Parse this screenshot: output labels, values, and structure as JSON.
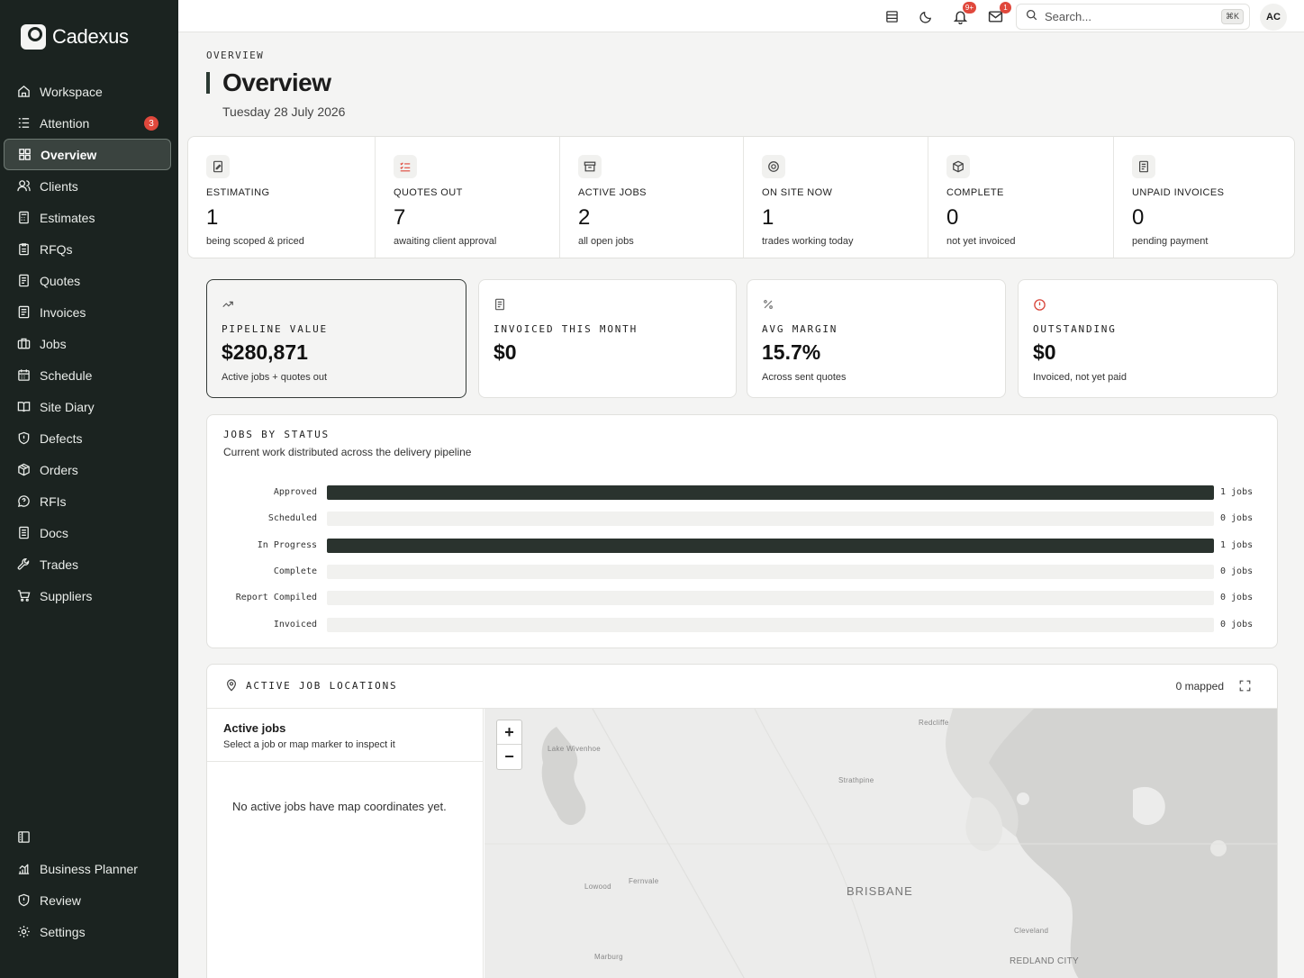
{
  "app": {
    "name": "Cadexus"
  },
  "sidebar": {
    "items": [
      {
        "label": "Workspace",
        "icon": "home-icon"
      },
      {
        "label": "Attention",
        "icon": "list-icon",
        "badge": "3"
      },
      {
        "label": "Overview",
        "icon": "grid-icon",
        "active": true
      },
      {
        "label": "Clients",
        "icon": "users-icon"
      },
      {
        "label": "Estimates",
        "icon": "calculator-icon"
      },
      {
        "label": "RFQs",
        "icon": "clipboard-icon"
      },
      {
        "label": "Quotes",
        "icon": "document-icon"
      },
      {
        "label": "Invoices",
        "icon": "receipt-icon"
      },
      {
        "label": "Jobs",
        "icon": "briefcase-icon"
      },
      {
        "label": "Schedule",
        "icon": "calendar-icon"
      },
      {
        "label": "Site Diary",
        "icon": "book-icon"
      },
      {
        "label": "Defects",
        "icon": "shield-icon"
      },
      {
        "label": "Orders",
        "icon": "box-icon"
      },
      {
        "label": "RFIs",
        "icon": "chat-icon"
      },
      {
        "label": "Docs",
        "icon": "file-icon"
      },
      {
        "label": "Trades",
        "icon": "wrench-icon"
      },
      {
        "label": "Suppliers",
        "icon": "cart-icon"
      }
    ],
    "bottom": [
      {
        "label": "",
        "icon": "panel-icon"
      },
      {
        "label": "Business Planner",
        "icon": "chart-icon"
      },
      {
        "label": "Review",
        "icon": "shield-icon"
      },
      {
        "label": "Settings",
        "icon": "gear-icon"
      }
    ]
  },
  "topbar": {
    "notifications_badge": "9+",
    "messages_badge": "1",
    "search_placeholder": "Search...",
    "search_shortcut": "⌘K",
    "avatar_initials": "AC"
  },
  "header": {
    "breadcrumb": "OVERVIEW",
    "title": "Overview",
    "date": "Tuesday 28 July 2026"
  },
  "stats": [
    {
      "label": "ESTIMATING",
      "value": "1",
      "sub": "being scoped & priced",
      "icon": "edit-icon"
    },
    {
      "label": "QUOTES OUT",
      "value": "7",
      "sub": "awaiting client approval",
      "icon": "checklist-icon"
    },
    {
      "label": "ACTIVE JOBS",
      "value": "2",
      "sub": "all open jobs",
      "icon": "archive-icon"
    },
    {
      "label": "ON SITE NOW",
      "value": "1",
      "sub": "trades working today",
      "icon": "target-icon"
    },
    {
      "label": "COMPLETE",
      "value": "0",
      "sub": "not yet invoiced",
      "icon": "package-icon"
    },
    {
      "label": "UNPAID INVOICES",
      "value": "0",
      "sub": "pending payment",
      "icon": "invoice-icon"
    }
  ],
  "kpis": [
    {
      "label": "PIPELINE VALUE",
      "value": "$280,871",
      "sub": "Active jobs + quotes out",
      "icon": "trend-icon"
    },
    {
      "label": "INVOICED THIS MONTH",
      "value": "$0",
      "sub": "",
      "icon": "receipt-icon"
    },
    {
      "label": "AVG MARGIN",
      "value": "15.7%",
      "sub": "Across sent quotes",
      "icon": "percent-icon"
    },
    {
      "label": "OUTSTANDING",
      "value": "$0",
      "sub": "Invoiced, not yet paid",
      "icon": "alert-icon"
    }
  ],
  "jobs_chart": {
    "title": "JOBS BY STATUS",
    "subtitle": "Current work distributed across the delivery pipeline"
  },
  "chart_data": {
    "type": "bar",
    "orientation": "horizontal",
    "categories": [
      "Approved",
      "Scheduled",
      "In Progress",
      "Complete",
      "Report Compiled",
      "Invoiced"
    ],
    "values": [
      1,
      0,
      1,
      0,
      0,
      0
    ],
    "value_labels": [
      "1 jobs",
      "0 jobs",
      "1 jobs",
      "0 jobs",
      "0 jobs",
      "0 jobs"
    ],
    "xlim": [
      0,
      1
    ],
    "bar_color": "#2a332e",
    "track_color": "#f1f1ef"
  },
  "map_panel": {
    "title": "ACTIVE JOB LOCATIONS",
    "mapped_count": "0 mapped",
    "list_title": "Active jobs",
    "list_subtitle": "Select a job or map marker to inspect it",
    "empty_text": "No active jobs have map coordinates yet.",
    "zoom_in": "+",
    "zoom_out": "−",
    "place_labels": [
      "Redcliffe",
      "Lake Wivenhoe",
      "Strathpine",
      "Fernvale",
      "Lowood",
      "BRISBANE",
      "Cleveland",
      "Marburg",
      "REDLAND CITY"
    ]
  },
  "colors": {
    "sidebar_bg": "#1b2320",
    "accent": "#2a332e",
    "badge": "#e0483c"
  }
}
